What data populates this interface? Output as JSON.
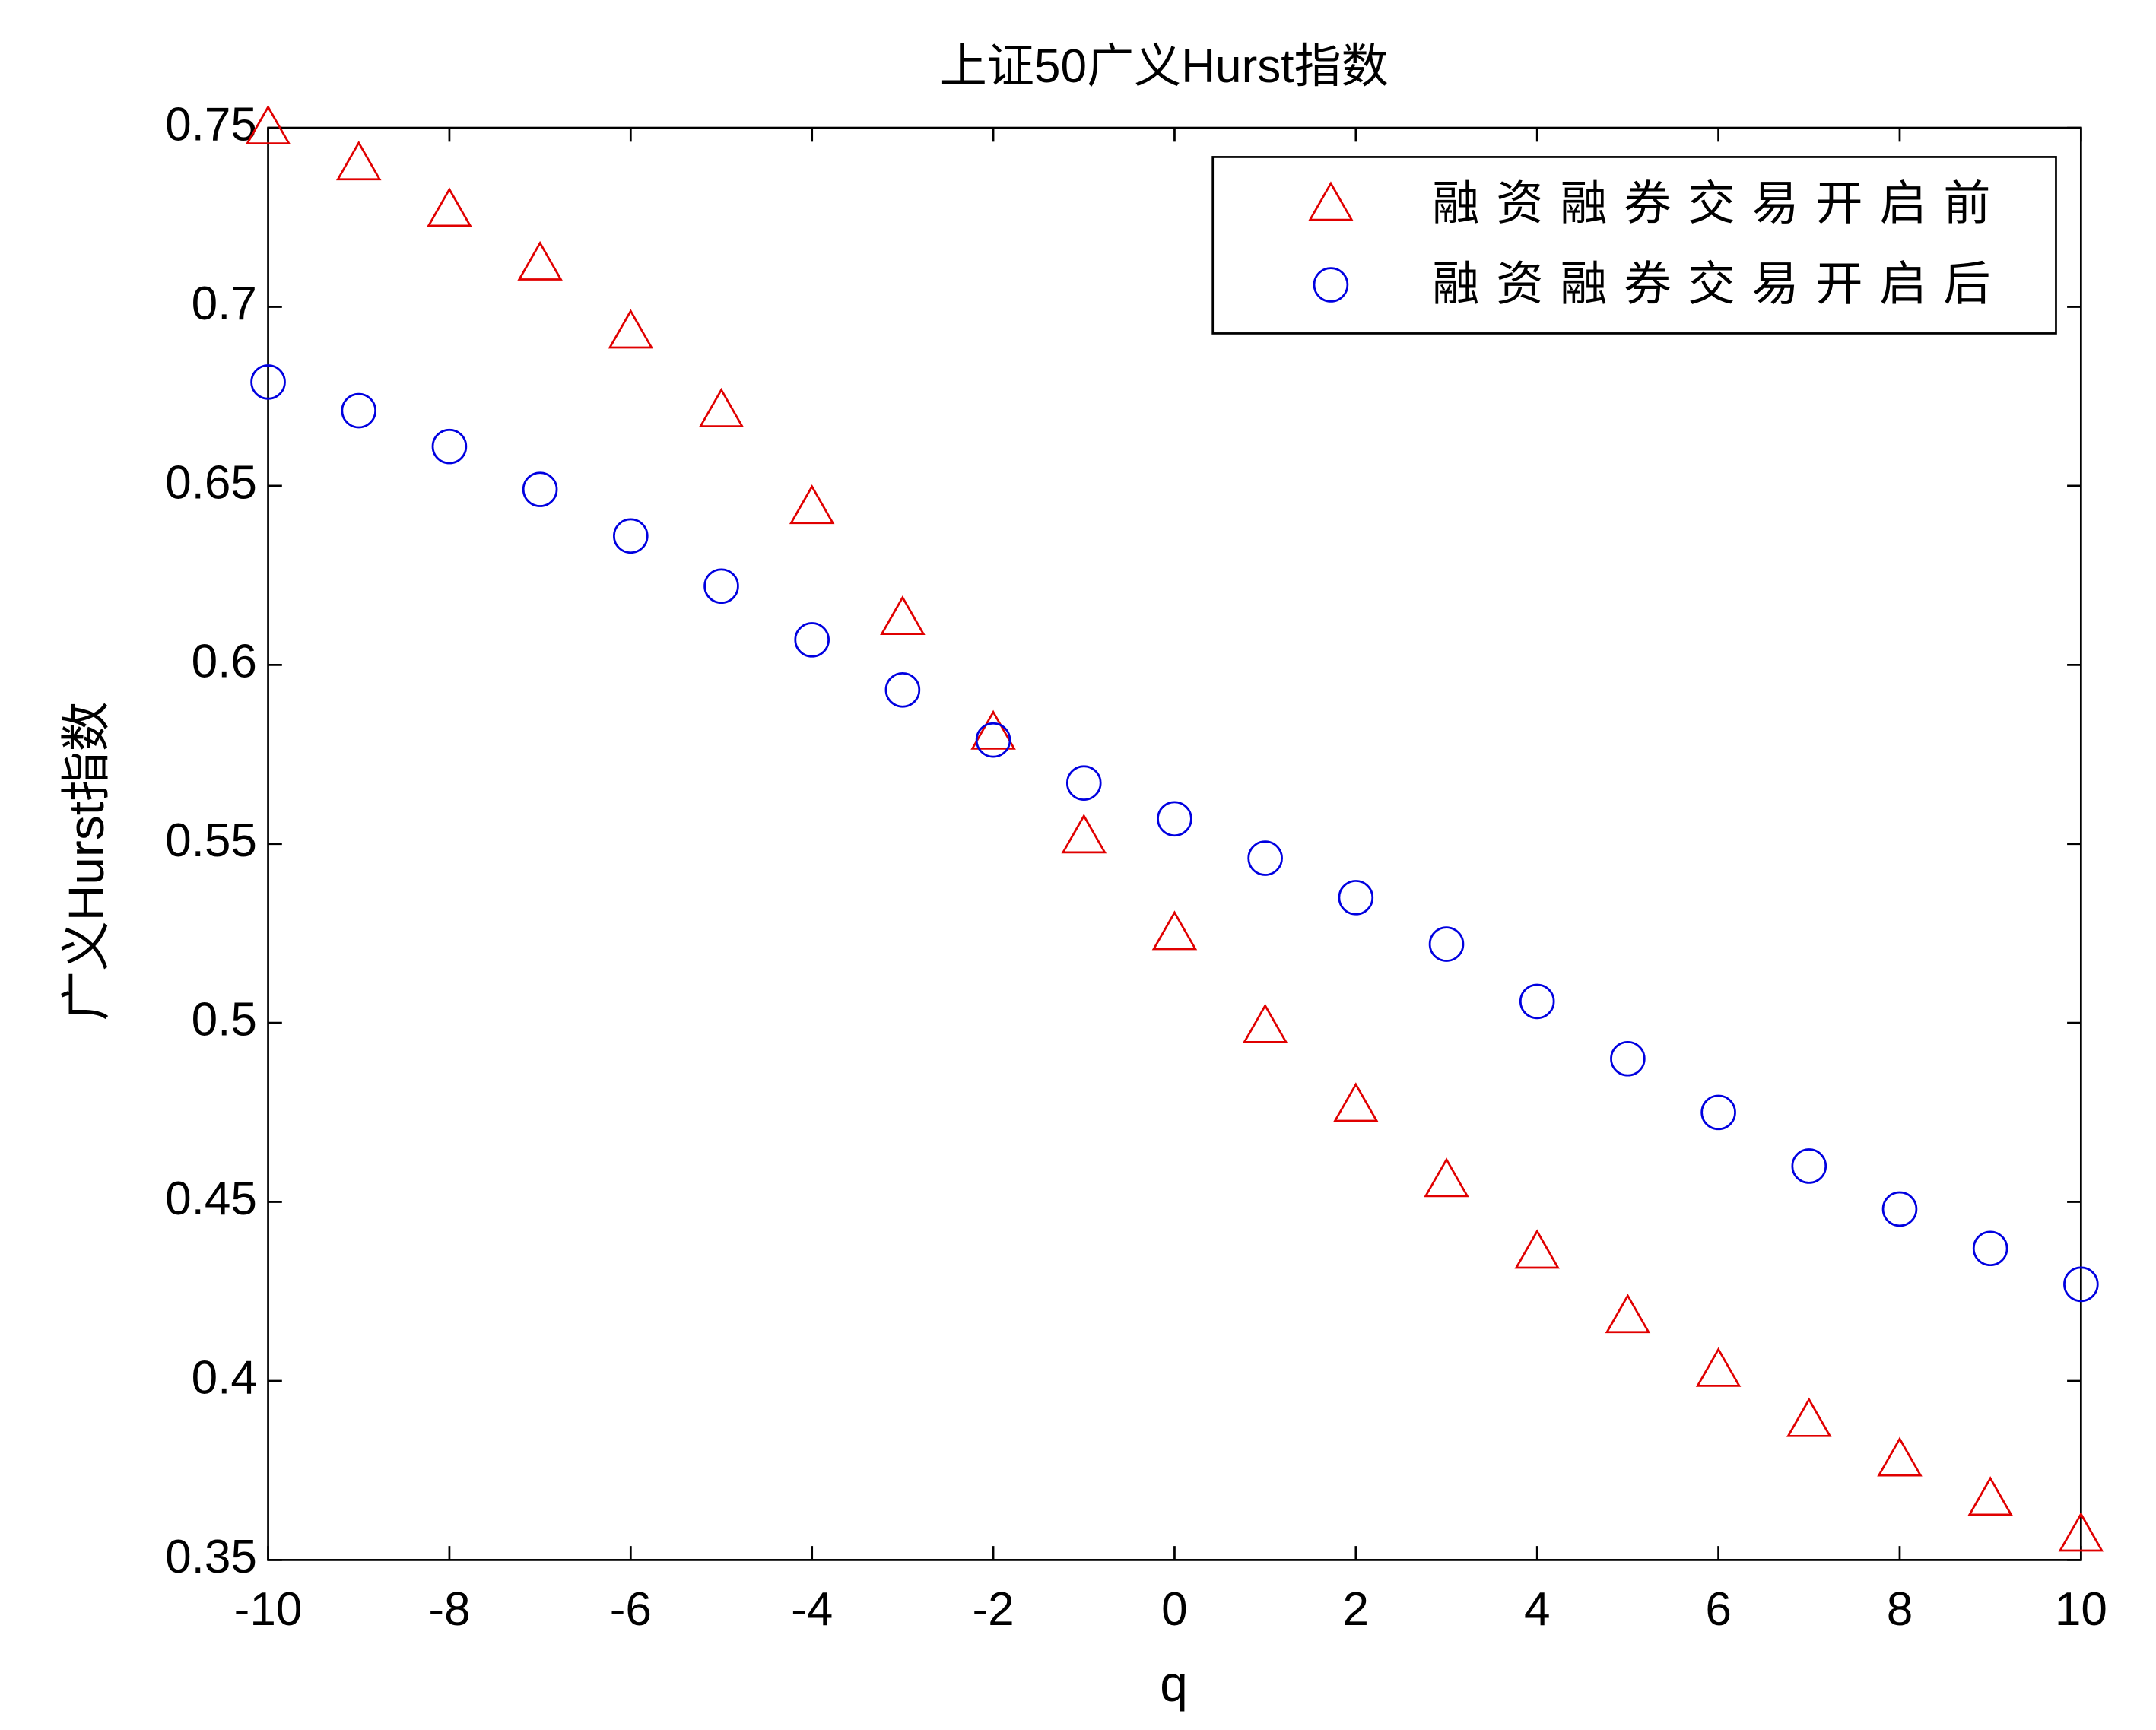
{
  "chart_data": {
    "type": "scatter",
    "title": "上证50广义Hurst指数",
    "xlabel": "q",
    "ylabel": "广义Hurst指数",
    "x": [
      -10,
      -9,
      -8,
      -7,
      -6,
      -5,
      -4,
      -3,
      -2,
      -1,
      0,
      1,
      2,
      3,
      4,
      5,
      6,
      7,
      8,
      9,
      10
    ],
    "series": [
      {
        "name": "融资融券交易开启前",
        "color": "#e00000",
        "marker": "triangle",
        "values": [
          0.75,
          0.74,
          0.727,
          0.712,
          0.693,
          0.671,
          0.644,
          0.613,
          0.581,
          0.552,
          0.525,
          0.499,
          0.477,
          0.456,
          0.436,
          0.418,
          0.403,
          0.389,
          0.378,
          0.367,
          0.357
        ]
      },
      {
        "name": "融资融券交易开启后",
        "color": "#0000e0",
        "marker": "circle",
        "values": [
          0.679,
          0.671,
          0.661,
          0.649,
          0.636,
          0.622,
          0.607,
          0.593,
          0.579,
          0.567,
          0.557,
          0.546,
          0.535,
          0.522,
          0.506,
          0.49,
          0.475,
          0.46,
          0.448,
          0.437,
          0.427
        ]
      }
    ],
    "xlim": [
      -10,
      10
    ],
    "xticks": [
      -10,
      -8,
      -6,
      -4,
      -2,
      0,
      2,
      4,
      6,
      8,
      10
    ],
    "ylim": [
      0.35,
      0.75
    ],
    "yticks": [
      0.35,
      0.4,
      0.45,
      0.5,
      0.55,
      0.6,
      0.65,
      0.7,
      0.75
    ],
    "grid": false,
    "legend": "upper right"
  }
}
